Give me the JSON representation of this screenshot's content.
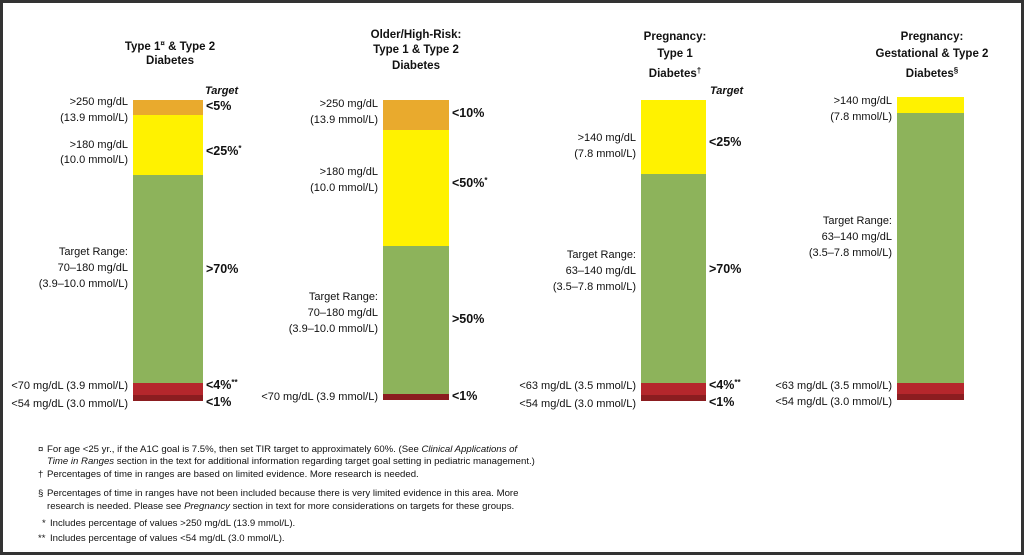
{
  "columns": [
    {
      "title": [
        [
          {
            "text": "Type 1"
          },
          {
            "text": "¤",
            "sup": true
          },
          {
            "text": " & Type 2"
          }
        ],
        [
          {
            "text": "Diabetes"
          }
        ]
      ],
      "target_header": "Target",
      "labels": [
        ">250 mg/dL",
        "(13.9 mmol/L)",
        ">180 mg/dL",
        "(10.0 mmol/L)",
        "Target Range:",
        "70–180 mg/dL",
        "(3.9–10.0 mmol/L)",
        "<70 mg/dL (3.9 mmol/L)",
        "<54 mg/dL (3.0 mmol/L)"
      ],
      "targets": [
        [
          {
            "text": "<5%"
          }
        ],
        [
          {
            "text": "<25%"
          },
          {
            "text": "*",
            "sup": true
          }
        ],
        [
          {
            "text": ">70%"
          }
        ],
        [
          {
            "text": "<4%"
          },
          {
            "text": "**",
            "sup": true
          }
        ],
        [
          {
            "text": "<1%"
          }
        ]
      ]
    },
    {
      "title": [
        [
          {
            "text": "Older/High-Risk:"
          }
        ],
        [
          {
            "text": "Type 1 & Type 2"
          }
        ],
        [
          {
            "text": "Diabetes"
          }
        ]
      ],
      "labels": [
        ">250 mg/dL",
        "(13.9 mmol/L)",
        ">180 mg/dL",
        "(10.0 mmol/L)",
        "Target Range:",
        "70–180 mg/dL",
        "(3.9–10.0 mmol/L)",
        "<70 mg/dL (3.9 mmol/L)"
      ],
      "targets": [
        [
          {
            "text": "<10%"
          }
        ],
        [
          {
            "text": "<50%"
          },
          {
            "text": "*",
            "sup": true
          }
        ],
        [
          {
            "text": ">50%"
          }
        ],
        [
          {
            "text": "<1%"
          }
        ]
      ]
    },
    {
      "title": [
        [
          {
            "text": "Pregnancy:"
          }
        ],
        [
          {
            "text": "Type 1"
          }
        ],
        [
          {
            "text": "Diabetes"
          },
          {
            "text": "†",
            "sup": true
          }
        ]
      ],
      "target_header": "Target",
      "labels": [
        ">140 mg/dL",
        "(7.8 mmol/L)",
        "Target Range:",
        "63–140 mg/dL",
        "(3.5–7.8 mmol/L)",
        "<63 mg/dL (3.5 mmol/L)",
        "<54 mg/dL (3.0 mmol/L)"
      ],
      "targets": [
        [
          {
            "text": "<25%"
          }
        ],
        [
          {
            "text": ">70%"
          }
        ],
        [
          {
            "text": "<4%"
          },
          {
            "text": "**",
            "sup": true
          }
        ],
        [
          {
            "text": "<1%"
          }
        ]
      ]
    },
    {
      "title": [
        [
          {
            "text": "Pregnancy:"
          }
        ],
        [
          {
            "text": "Gestational & Type 2"
          }
        ],
        [
          {
            "text": "Diabetes"
          },
          {
            "text": "§",
            "sup": true
          }
        ]
      ],
      "labels": [
        ">140 mg/dL",
        "(7.8 mmol/L)",
        "Target Range:",
        "63–140 mg/dL",
        "(3.5–7.8 mmol/L)",
        "<63 mg/dL (3.5 mmol/L)",
        "<54 mg/dL (3.0 mmol/L)"
      ],
      "targets": []
    }
  ],
  "footnotes": [
    [
      [
        {
          "text": "¤"
        }
      ],
      [
        {
          "text": "For age <25 yr., if the A1C goal is 7.5%, then set TIR target to approximately 60%.  (See "
        },
        {
          "text": "Clinical Applications of",
          "italic": true
        }
      ],
      [
        {
          "text": "Time in Ranges",
          "italic": true
        },
        {
          "text": " section in the text for additional information regarding target goal setting in pediatric management.)"
        }
      ]
    ],
    [
      [
        {
          "text": "†"
        }
      ],
      [
        {
          "text": "Percentages of time in ranges are based on limited evidence. More research is needed."
        }
      ]
    ],
    [
      [
        {
          "text": "§"
        }
      ],
      [
        {
          "text": "Percentages of time in ranges have not been included because there is very limited evidence in this area.  More"
        }
      ],
      [
        {
          "text": "research is needed. Please see "
        },
        {
          "text": "Pregnancy",
          "italic": true
        },
        {
          "text": " section in text for more considerations on targets for these groups."
        }
      ]
    ],
    [
      [
        {
          "text": "*"
        }
      ],
      [
        {
          "text": "Includes percentage of values >250 mg/dL (13.9 mmol/L)."
        }
      ]
    ],
    [
      [
        {
          "text": "**"
        }
      ],
      [
        {
          "text": "Includes percentage of values <54 mg/dL (3.0 mmol/L)."
        }
      ]
    ]
  ]
}
